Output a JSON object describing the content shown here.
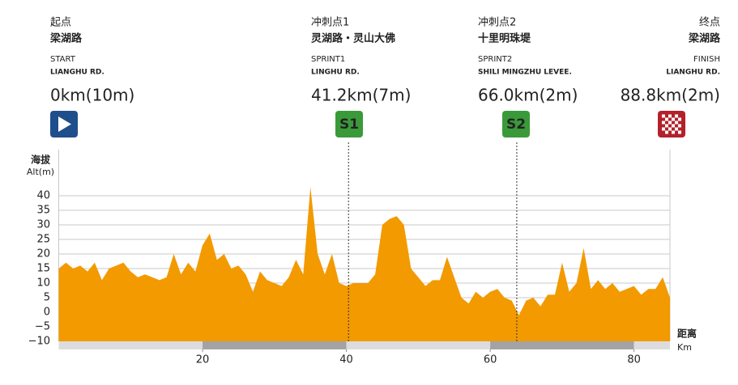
{
  "chart_data": {
    "type": "area",
    "waypoints": [
      {
        "label_cn": "起点",
        "name_cn": "梁湖路",
        "label_en": "START",
        "name_en": "LIANGHU RD.",
        "distance": "0km(10m)",
        "color": "#1f4e8c"
      },
      {
        "label_cn": "冲刺点1",
        "name_cn": "灵湖路・灵山大佛",
        "label_en": "SPRINT1",
        "name_en": "LINGHU RD.",
        "distance": "41.2km(7m)",
        "badge": "S1",
        "color": "#3a9a3a"
      },
      {
        "label_cn": "冲刺点2",
        "name_cn": "十里明珠堤",
        "label_en": "SPRINT2",
        "name_en": "SHILI MINGZHU LEVEE.",
        "distance": "66.0km(2m)",
        "badge": "S2",
        "color": "#3a9a3a"
      },
      {
        "label_cn": "终点",
        "name_cn": "梁湖路",
        "label_en": "FINISH",
        "name_en": "LIANGHU RD.",
        "distance": "88.8km(2m)",
        "color": "#b3212a"
      }
    ],
    "y_title_cn": "海拔",
    "y_title_en": "Alt(m)",
    "x_title_cn": "距离",
    "x_title_en": "Km",
    "sprint_lines": [
      40.3,
      63.7
    ],
    "x": [
      0,
      1,
      2,
      3,
      4,
      5,
      6,
      7,
      8,
      9,
      10,
      11,
      12,
      13,
      14,
      15,
      16,
      17,
      18,
      19,
      20,
      21,
      22,
      23,
      24,
      25,
      26,
      27,
      28,
      29,
      30,
      31,
      32,
      33,
      34,
      35,
      36,
      37,
      38,
      39,
      40,
      41,
      42,
      43,
      44,
      45,
      46,
      47,
      48,
      49,
      50,
      51,
      52,
      53,
      54,
      55,
      56,
      57,
      58,
      59,
      60,
      61,
      62,
      63,
      64,
      65,
      66,
      67,
      68,
      69,
      70,
      71,
      72,
      73,
      74,
      75,
      76,
      77,
      78,
      79,
      80,
      81,
      82,
      83,
      84,
      85
    ],
    "values": [
      15,
      17,
      15,
      16,
      14,
      17,
      11,
      15,
      16,
      17,
      14,
      12,
      13,
      12,
      11,
      12,
      20,
      13,
      17,
      14,
      23,
      27,
      18,
      20,
      15,
      16,
      13,
      7,
      14,
      11,
      10,
      9,
      12,
      18,
      13,
      43,
      20,
      13,
      20,
      10,
      9,
      10,
      10,
      10,
      13,
      30,
      32,
      33,
      30,
      15,
      12,
      9,
      11,
      11,
      19,
      12,
      5,
      3,
      7,
      5,
      7,
      8,
      5,
      4,
      -1,
      4,
      5,
      2,
      6,
      6,
      17,
      7,
      10,
      22,
      8,
      11,
      8,
      10,
      7,
      8,
      9,
      6,
      8,
      8,
      12,
      5
    ],
    "color": "#f29a00",
    "xlim": [
      0,
      85
    ],
    "xticks": [
      20,
      40,
      60,
      80
    ],
    "ylim": [
      -10,
      55
    ],
    "yticks": [
      {
        "value": -10,
        "label": "−10"
      },
      {
        "value": -5,
        "label": "−5"
      },
      0,
      5,
      10,
      15,
      20,
      25,
      30,
      35,
      40
    ],
    "grid": true
  }
}
